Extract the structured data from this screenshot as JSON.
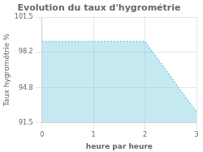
{
  "chart_data": {
    "type": "area",
    "title": "Evolution du taux d'hygrométrie",
    "x_label": "heure par heure",
    "y_label": "Taux hygrométrie %",
    "x": [
      0,
      2,
      3
    ],
    "values": [
      99.2,
      99.2,
      92.5
    ],
    "color": "#7fcfe0",
    "line_style": "dotted",
    "xlim": [
      0,
      3
    ],
    "xticks": [
      0,
      1,
      2,
      3
    ],
    "ylim": [
      91.5,
      101.5
    ],
    "yticks": [
      91.5,
      94.8,
      98.2,
      101.5
    ],
    "grid": true
  }
}
